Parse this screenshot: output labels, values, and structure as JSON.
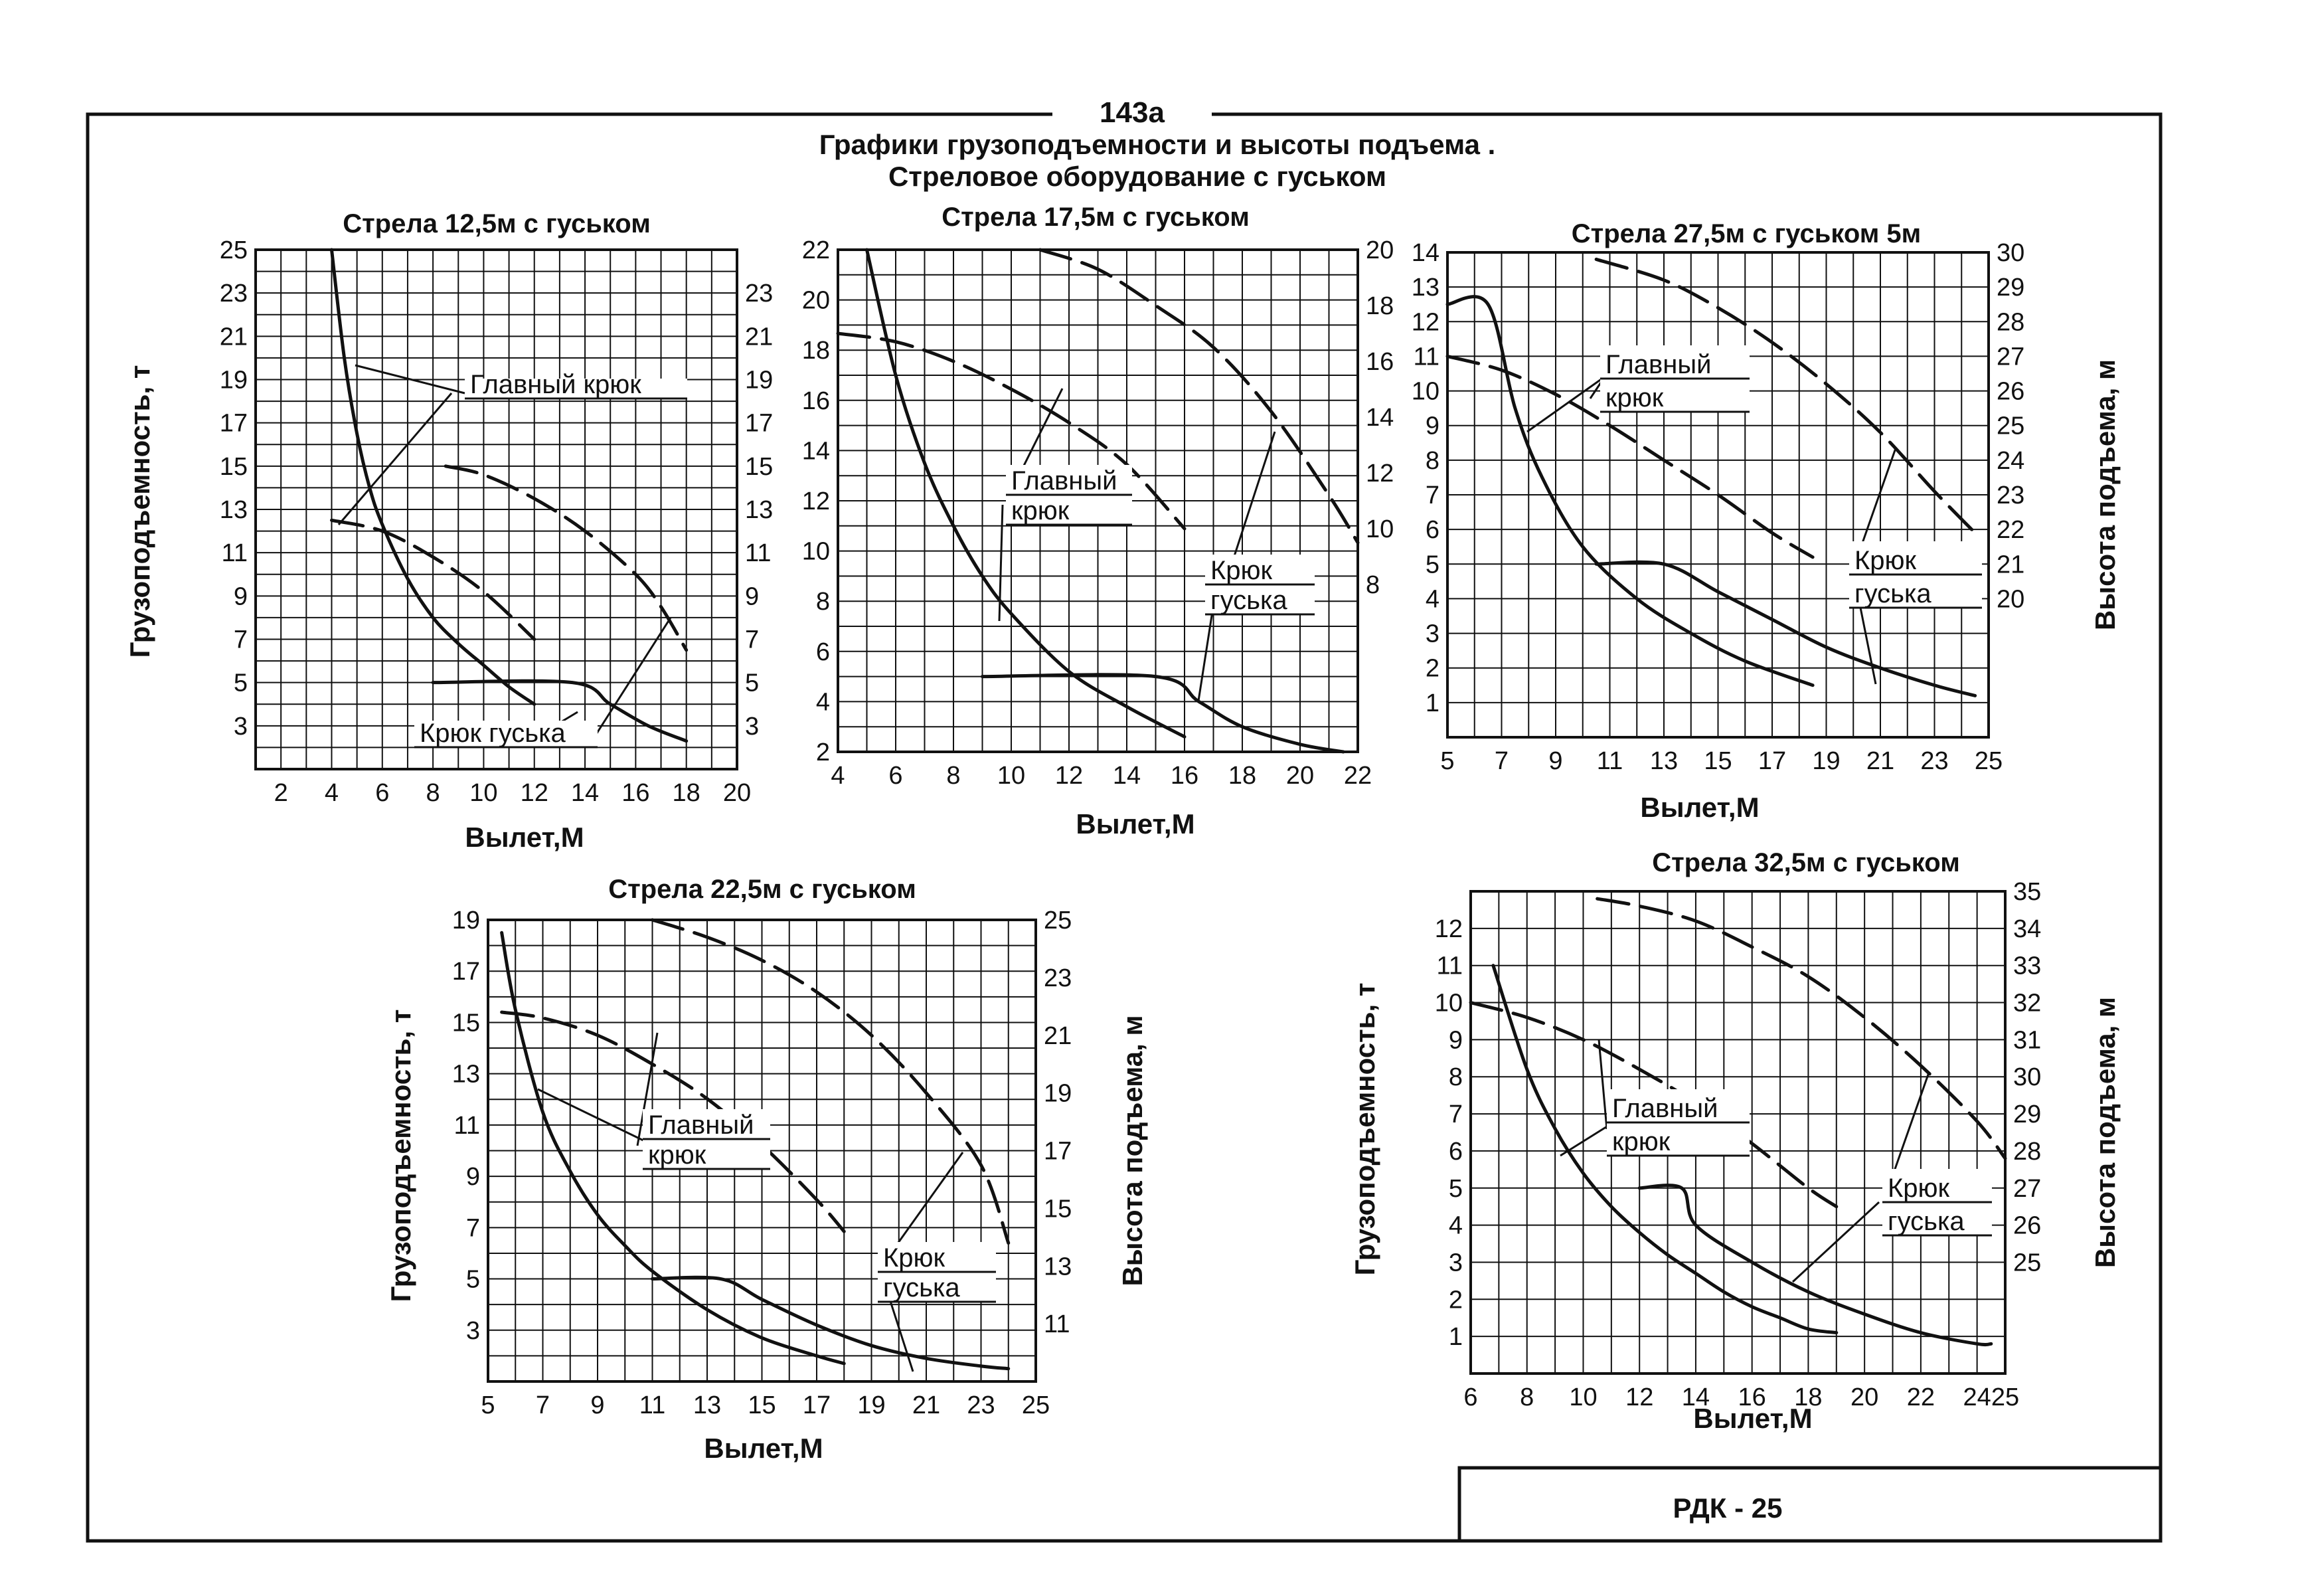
{
  "page": {
    "number": "143а",
    "title": "Графики грузоподъемности и высоты подъема .",
    "subtitle": "Стреловое оборудование с гуськом",
    "stamp": "РДК - 25"
  },
  "colors": {
    "ink": "#111111",
    "paper": "#ffffff"
  },
  "chart_data": [
    {
      "type": "line",
      "title": "Стрела 12,5м с гуськом",
      "xlabel": "Вылет,М",
      "ylabel": "Грузоподъемность, т",
      "ylabel_right": "",
      "xlim": [
        1,
        20
      ],
      "ylim": [
        1,
        25
      ],
      "ylim_right": [
        1,
        25
      ],
      "x_ticks": [
        "2",
        "4",
        "6",
        "8",
        "10",
        "12",
        "14",
        "16",
        "18",
        "20"
      ],
      "y_ticks": [
        "3",
        "5",
        "7",
        "9",
        "11",
        "13",
        "15",
        "17",
        "19",
        "21",
        "23",
        "25"
      ],
      "y_ticks_right": [
        "3",
        "5",
        "7",
        "9",
        "11",
        "13",
        "15",
        "17",
        "19",
        "21",
        "23"
      ],
      "series": [
        {
          "name": "Главный крюк (грузоподъемность)",
          "axis": "left",
          "style": "solid",
          "x": [
            4.0,
            4.5,
            5.0,
            5.5,
            6.0,
            7.0,
            8.0,
            9.0,
            10.0,
            11.0,
            12.0
          ],
          "y": [
            25.0,
            20.0,
            16.5,
            14.0,
            12.3,
            9.8,
            8.0,
            6.8,
            5.8,
            4.8,
            4.0
          ]
        },
        {
          "name": "Крюк гуська (грузоподъемность)",
          "axis": "left",
          "style": "solid",
          "x": [
            8.0,
            13.5,
            15.0,
            16.5,
            18.0
          ],
          "y": [
            5.0,
            5.0,
            4.0,
            3.0,
            2.3
          ]
        },
        {
          "name": "Главный крюк (высота подъема)",
          "axis": "right",
          "style": "dashed",
          "x": [
            4.0,
            6.0,
            8.0,
            10.0,
            12.0
          ],
          "y": [
            12.5,
            12.0,
            10.8,
            9.2,
            7.0
          ]
        },
        {
          "name": "Крюк гуська (высота подъема)",
          "axis": "right",
          "style": "dashed",
          "x": [
            8.5,
            10.0,
            12.0,
            14.0,
            16.0,
            17.0,
            18.0
          ],
          "y": [
            15.0,
            14.6,
            13.5,
            12.0,
            10.0,
            8.5,
            6.5
          ]
        }
      ],
      "annotations": [
        {
          "text": "Главный крюк",
          "kind": "box"
        },
        {
          "text": "Крюк гуська",
          "kind": "box"
        }
      ]
    },
    {
      "type": "line",
      "title": "Стрела 17,5м с гуськом",
      "xlabel": "Вылет,М",
      "ylabel": "",
      "ylabel_right": "",
      "xlim": [
        4,
        22
      ],
      "ylim": [
        2,
        22
      ],
      "ylim_right": [
        2,
        20
      ],
      "x_ticks": [
        "4",
        "6",
        "8",
        "10",
        "12",
        "14",
        "16",
        "18",
        "20",
        "22"
      ],
      "y_ticks": [
        "2",
        "4",
        "6",
        "8",
        "10",
        "12",
        "14",
        "16",
        "18",
        "20",
        "22"
      ],
      "y_ticks_right": [
        "8",
        "10",
        "12",
        "14",
        "16",
        "18",
        "20"
      ],
      "series": [
        {
          "name": "Главный крюк (грузоподъемность)",
          "axis": "left",
          "style": "solid",
          "x": [
            5.0,
            6.0,
            7.0,
            8.0,
            9.0,
            10.0,
            12.0,
            14.0,
            16.0
          ],
          "y": [
            22.0,
            17.0,
            13.5,
            11.0,
            9.0,
            7.5,
            5.2,
            3.8,
            2.6
          ]
        },
        {
          "name": "Крюк гуська (грузоподъемность)",
          "axis": "left",
          "style": "solid",
          "x": [
            9.0,
            15.0,
            16.5,
            18.0,
            20.0,
            21.5
          ],
          "y": [
            5.0,
            5.0,
            4.0,
            3.0,
            2.3,
            2.0
          ]
        },
        {
          "name": "Главный крюк (высота подъема)",
          "axis": "right",
          "style": "dashed",
          "x": [
            4.0,
            6.0,
            8.0,
            10.0,
            12.0,
            14.0,
            16.0
          ],
          "y": [
            17.0,
            16.7,
            16.0,
            15.0,
            13.8,
            12.3,
            10.0
          ]
        },
        {
          "name": "Крюк гуська (высота подъема)",
          "axis": "right",
          "style": "dashed",
          "x": [
            11.0,
            13.0,
            15.0,
            17.0,
            19.0,
            21.0,
            22.0
          ],
          "y": [
            20.0,
            19.3,
            18.0,
            16.5,
            14.2,
            11.2,
            9.5
          ]
        }
      ],
      "annotations": [
        {
          "text": "Главный",
          "kind": "box"
        },
        {
          "text": "крюк",
          "kind": "box"
        },
        {
          "text": "Крюк",
          "kind": "box"
        },
        {
          "text": "гуська",
          "kind": "box"
        }
      ]
    },
    {
      "type": "line",
      "title": "Стрела 27,5м с гуськом 5м",
      "xlabel": "Вылет,М",
      "ylabel": "",
      "ylabel_right": "Высота подъема, м",
      "xlim": [
        5,
        25
      ],
      "ylim": [
        0,
        14
      ],
      "ylim_right": [
        16,
        30
      ],
      "x_ticks": [
        "5",
        "7",
        "9",
        "11",
        "13",
        "15",
        "17",
        "19",
        "21",
        "23",
        "25"
      ],
      "y_ticks": [
        "1",
        "2",
        "3",
        "4",
        "5",
        "6",
        "7",
        "8",
        "9",
        "10",
        "11",
        "12",
        "13",
        "14"
      ],
      "y_ticks_right": [
        "20",
        "21",
        "22",
        "23",
        "24",
        "25",
        "26",
        "27",
        "28",
        "29",
        "30"
      ],
      "series": [
        {
          "name": "Главный крюк (грузоподъемность)",
          "axis": "left",
          "style": "solid",
          "x": [
            5.0,
            6.5,
            7.5,
            8.5,
            10.0,
            12.0,
            14.0,
            16.0,
            18.5
          ],
          "y": [
            12.5,
            12.5,
            9.5,
            7.5,
            5.5,
            4.0,
            3.0,
            2.2,
            1.5
          ]
        },
        {
          "name": "Крюк гуська (грузоподъемность)",
          "axis": "left",
          "style": "solid",
          "x": [
            10.5,
            13.0,
            15.0,
            17.0,
            19.0,
            21.0,
            23.0,
            24.5
          ],
          "y": [
            5.0,
            5.0,
            4.2,
            3.4,
            2.6,
            2.0,
            1.5,
            1.2
          ]
        },
        {
          "name": "Главный крюк (высота подъема)",
          "axis": "right",
          "style": "dashed",
          "x": [
            5.0,
            7.0,
            9.0,
            11.0,
            13.0,
            15.0,
            17.0,
            18.5
          ],
          "y": [
            27.0,
            26.6,
            25.9,
            25.0,
            24.0,
            23.0,
            21.9,
            21.2
          ]
        },
        {
          "name": "Крюк гуська (высота подъема)",
          "axis": "right",
          "style": "dashed",
          "x": [
            10.5,
            13.0,
            15.0,
            17.0,
            19.0,
            21.0,
            23.0,
            24.5
          ],
          "y": [
            29.8,
            29.2,
            28.4,
            27.4,
            26.2,
            24.8,
            23.1,
            21.9
          ]
        }
      ],
      "annotations": [
        {
          "text": "Главный",
          "kind": "box"
        },
        {
          "text": "крюк",
          "kind": "box"
        },
        {
          "text": "Крюк",
          "kind": "box"
        },
        {
          "text": "гуська",
          "kind": "box"
        }
      ]
    },
    {
      "type": "line",
      "title": "Стрела 22,5м с гуськом",
      "xlabel": "Вылет,М",
      "ylabel": "Грузоподъемность, т",
      "ylabel_right": "Высота подъема, м",
      "xlim": [
        5,
        25
      ],
      "ylim": [
        1,
        19
      ],
      "ylim_right": [
        9,
        25
      ],
      "x_ticks": [
        "5",
        "7",
        "9",
        "11",
        "13",
        "15",
        "17",
        "19",
        "21",
        "23",
        "25"
      ],
      "y_ticks": [
        "3",
        "5",
        "7",
        "9",
        "11",
        "13",
        "15",
        "17",
        "19"
      ],
      "y_ticks_right": [
        "11",
        "13",
        "15",
        "17",
        "19",
        "21",
        "23",
        "25"
      ],
      "series": [
        {
          "name": "Главный крюк (грузоподъемность)",
          "axis": "left",
          "style": "solid",
          "x": [
            5.5,
            6.0,
            7.0,
            8.0,
            9.0,
            10.0,
            11.0,
            13.0,
            15.0,
            17.0,
            18.0
          ],
          "y": [
            18.5,
            15.5,
            11.5,
            9.2,
            7.5,
            6.3,
            5.3,
            3.8,
            2.7,
            2.0,
            1.7
          ]
        },
        {
          "name": "Крюк гуська (грузоподъемность)",
          "axis": "left",
          "style": "solid",
          "x": [
            11.0,
            13.5,
            15.0,
            17.0,
            19.0,
            21.0,
            23.0,
            24.0
          ],
          "y": [
            5.0,
            5.0,
            4.2,
            3.2,
            2.4,
            1.9,
            1.6,
            1.5
          ]
        },
        {
          "name": "Главный крюк (высота подъема)",
          "axis": "right",
          "style": "dashed",
          "x": [
            5.5,
            7.0,
            9.0,
            11.0,
            13.0,
            15.0,
            17.0,
            18.0
          ],
          "y": [
            21.8,
            21.6,
            21.0,
            20.0,
            18.8,
            17.2,
            15.3,
            14.2
          ]
        },
        {
          "name": "Крюк гуська (высота подъема)",
          "axis": "right",
          "style": "dashed",
          "x": [
            11.0,
            13.0,
            15.0,
            17.0,
            19.0,
            21.0,
            23.0,
            24.0
          ],
          "y": [
            25.0,
            24.4,
            23.6,
            22.5,
            21.0,
            19.0,
            16.5,
            13.8
          ]
        }
      ],
      "annotations": [
        {
          "text": "Главный",
          "kind": "box"
        },
        {
          "text": "крюк",
          "kind": "box"
        },
        {
          "text": "Крюк",
          "kind": "box"
        },
        {
          "text": "гуська",
          "kind": "box"
        }
      ]
    },
    {
      "type": "line",
      "title": "Стрела 32,5м с гуськом",
      "xlabel": "Вылет,М",
      "ylabel": "Грузоподъемность, т",
      "ylabel_right": "Высота подъема, м",
      "xlim": [
        6,
        25
      ],
      "ylim": [
        0,
        13
      ],
      "ylim_right": [
        22,
        35
      ],
      "x_ticks": [
        "6",
        "8",
        "10",
        "12",
        "14",
        "16",
        "18",
        "20",
        "22",
        "24",
        "25"
      ],
      "y_ticks": [
        "1",
        "2",
        "3",
        "4",
        "5",
        "6",
        "7",
        "8",
        "9",
        "10",
        "11",
        "12"
      ],
      "y_ticks_right": [
        "25",
        "26",
        "27",
        "28",
        "29",
        "30",
        "31",
        "32",
        "33",
        "34",
        "35"
      ],
      "series": [
        {
          "name": "Главный крюк (грузоподъемность)",
          "axis": "left",
          "style": "solid",
          "x": [
            6.8,
            8.0,
            9.0,
            10.0,
            11.0,
            12.0,
            13.0,
            14.0,
            15.0,
            16.0,
            17.0,
            18.0,
            19.0
          ],
          "y": [
            11.0,
            8.2,
            6.6,
            5.4,
            4.5,
            3.8,
            3.2,
            2.7,
            2.2,
            1.8,
            1.5,
            1.2,
            1.1
          ]
        },
        {
          "name": "Крюк гуська (грузоподъемность)",
          "axis": "left",
          "style": "solid",
          "x": [
            12.0,
            13.5,
            14.0,
            16.0,
            18.0,
            20.0,
            22.0,
            24.0,
            24.5
          ],
          "y": [
            5.0,
            5.0,
            4.0,
            3.0,
            2.2,
            1.6,
            1.1,
            0.8,
            0.8
          ]
        },
        {
          "name": "Главный крюк (высота подъема)",
          "axis": "right",
          "style": "dashed",
          "x": [
            6.0,
            8.0,
            10.0,
            12.0,
            14.0,
            16.0,
            18.0,
            19.0
          ],
          "y": [
            32.0,
            31.6,
            31.0,
            30.2,
            29.3,
            28.2,
            27.0,
            26.5
          ]
        },
        {
          "name": "Крюк гуська (высота подъема)",
          "axis": "right",
          "style": "dashed",
          "x": [
            10.5,
            12.0,
            14.0,
            16.0,
            18.0,
            20.0,
            22.0,
            24.0,
            25.0
          ],
          "y": [
            34.8,
            34.6,
            34.2,
            33.5,
            32.7,
            31.6,
            30.3,
            28.8,
            27.8
          ]
        }
      ],
      "annotations": [
        {
          "text": "Главный",
          "kind": "box"
        },
        {
          "text": "крюк",
          "kind": "box"
        },
        {
          "text": "Крюк",
          "kind": "box"
        },
        {
          "text": "гуська",
          "kind": "box"
        }
      ]
    }
  ]
}
